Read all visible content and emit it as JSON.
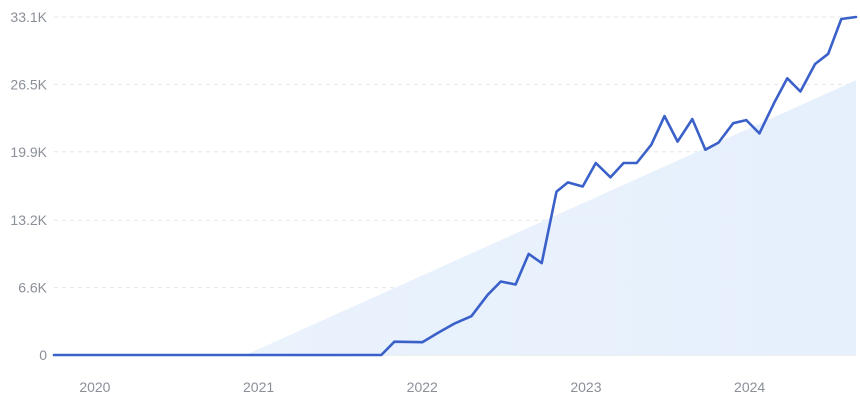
{
  "chart_data": {
    "type": "line",
    "x_ticks": [
      "2020",
      "2021",
      "2022",
      "2023",
      "2024"
    ],
    "y_ticks": [
      "0",
      "6.6K",
      "13.2K",
      "19.9K",
      "26.5K",
      "33.1K"
    ],
    "y_tick_values": [
      0,
      6600,
      13200,
      19900,
      26500,
      33100
    ],
    "ylim": [
      0,
      33100
    ],
    "xlim": [
      2019.75,
      2024.65
    ],
    "grid": true,
    "colors": {
      "line": "#3a60c9",
      "area": "#e6f0fc",
      "grid": "#e3e6ea",
      "tick_text": "#8a8f98"
    },
    "trend_area": [
      {
        "x": 2020.92,
        "y": 0
      },
      {
        "x": 2024.65,
        "y": 26900
      }
    ],
    "series": [
      {
        "x": [
          2019.75,
          2020.0,
          2020.5,
          2021.0,
          2021.5,
          2021.75,
          2021.83,
          2022.0,
          2022.1,
          2022.2,
          2022.3,
          2022.4,
          2022.48,
          2022.57,
          2022.65,
          2022.73,
          2022.82,
          2022.89,
          2022.98,
          2023.06,
          2023.15,
          2023.23,
          2023.31,
          2023.4,
          2023.48,
          2023.56,
          2023.65,
          2023.73,
          2023.81,
          2023.9,
          2023.98,
          2024.06,
          2024.15,
          2024.23,
          2024.31,
          2024.4,
          2024.48,
          2024.56,
          2024.65
        ],
        "values": [
          0,
          0,
          0,
          0,
          0,
          0,
          1300,
          1250,
          2200,
          3100,
          3800,
          5900,
          7200,
          6900,
          9900,
          9000,
          16000,
          16900,
          16500,
          18800,
          17400,
          18800,
          18800,
          20600,
          23400,
          20900,
          23100,
          20100,
          20800,
          22700,
          23000,
          21700,
          24700,
          27100,
          25800,
          28500,
          29500,
          32900,
          33100
        ]
      }
    ]
  }
}
